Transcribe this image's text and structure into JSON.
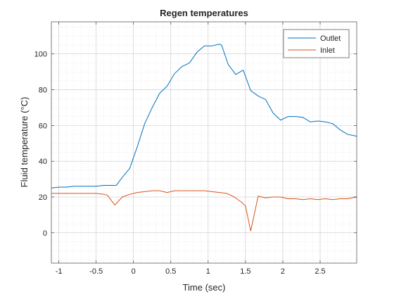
{
  "chart_data": {
    "type": "line",
    "title": "Regen temperatures",
    "xlabel": "Time (sec)",
    "ylabel": "Fluid temperature (°C)",
    "xlim": [
      -1.1,
      2.99
    ],
    "ylim": [
      -17,
      118
    ],
    "grid": true,
    "minor_grid": true,
    "legend_position": "top-right",
    "x_ticks": [
      -1,
      -0.5,
      0,
      0.5,
      1,
      1.5,
      2,
      2.5
    ],
    "x_tick_labels": [
      "-1",
      "-0.5",
      "0",
      "0.5",
      "1",
      "1.5",
      "2",
      "2.5"
    ],
    "y_ticks": [
      0,
      20,
      40,
      60,
      80,
      100
    ],
    "y_tick_labels": [
      "0",
      "20",
      "40",
      "60",
      "80",
      "100"
    ],
    "series": [
      {
        "name": "Outlet",
        "color": "#0072BD",
        "x": [
          -1.1,
          -1.0,
          -0.9,
          -0.8,
          -0.7,
          -0.6,
          -0.5,
          -0.4,
          -0.3,
          -0.23,
          -0.15,
          -0.05,
          0.05,
          0.15,
          0.25,
          0.35,
          0.45,
          0.55,
          0.65,
          0.75,
          0.85,
          0.95,
          1.05,
          1.15,
          1.18,
          1.27,
          1.37,
          1.47,
          1.57,
          1.67,
          1.77,
          1.87,
          1.97,
          2.07,
          2.17,
          2.27,
          2.37,
          2.47,
          2.57,
          2.67,
          2.77,
          2.87,
          2.99
        ],
        "y": [
          25,
          25.5,
          25.5,
          26,
          26,
          26,
          26,
          26.5,
          26.5,
          26.5,
          31,
          36,
          48,
          61,
          70,
          78,
          82,
          89,
          93,
          95,
          101,
          104.5,
          104.5,
          105.5,
          105,
          94,
          88.5,
          91,
          79.5,
          76.5,
          74.5,
          67,
          63,
          65,
          65,
          64.5,
          62,
          62.5,
          62,
          61,
          57.5,
          55,
          54
        ]
      },
      {
        "name": "Inlet",
        "color": "#D95319",
        "x": [
          -1.1,
          -1.0,
          -0.9,
          -0.8,
          -0.7,
          -0.6,
          -0.5,
          -0.4,
          -0.35,
          -0.25,
          -0.15,
          -0.05,
          0.05,
          0.15,
          0.25,
          0.35,
          0.45,
          0.55,
          0.65,
          0.75,
          0.85,
          0.95,
          1.05,
          1.15,
          1.25,
          1.35,
          1.45,
          1.5,
          1.57,
          1.67,
          1.77,
          1.87,
          1.97,
          2.07,
          2.17,
          2.27,
          2.37,
          2.47,
          2.57,
          2.67,
          2.77,
          2.87,
          2.99
        ],
        "y": [
          22,
          22,
          22,
          22,
          22,
          22,
          22,
          21.5,
          21,
          15.5,
          20,
          21.5,
          22.5,
          23,
          23.5,
          23.5,
          22.5,
          23.5,
          23.5,
          23.5,
          23.5,
          23.5,
          23,
          22.5,
          22,
          20,
          17,
          15,
          1,
          20.5,
          19.5,
          20,
          20,
          19,
          19,
          18.5,
          19,
          18.5,
          19,
          18.5,
          19,
          19,
          20
        ]
      }
    ]
  }
}
